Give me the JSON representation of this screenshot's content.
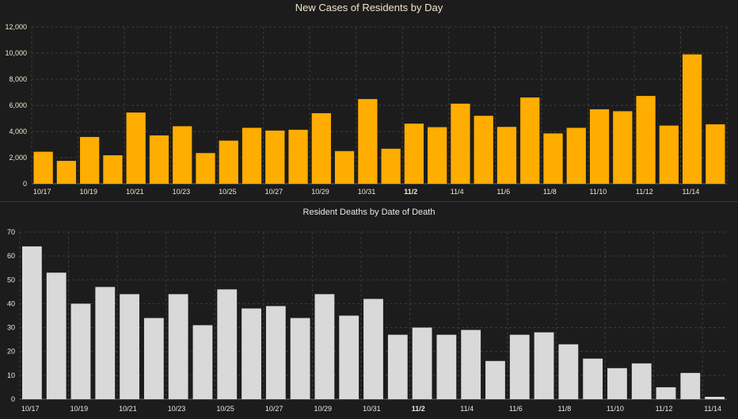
{
  "chart_data": [
    {
      "type": "bar",
      "title": "New Cases of Residents by Day",
      "xlabel": "",
      "ylabel": "",
      "ylim": [
        0,
        12000
      ],
      "yticks": [
        0,
        2000,
        4000,
        6000,
        8000,
        10000,
        12000
      ],
      "ytick_labels": [
        "0",
        "2,000",
        "4,000",
        "6,000",
        "8,000",
        "10,000",
        "12,000"
      ],
      "grid": true,
      "bar_color": "#ffad00",
      "categories": [
        "10/17",
        "10/18",
        "10/19",
        "10/20",
        "10/21",
        "10/22",
        "10/23",
        "10/24",
        "10/25",
        "10/26",
        "10/27",
        "10/28",
        "10/29",
        "10/30",
        "10/31",
        "11/1",
        "11/2",
        "11/3",
        "11/4",
        "11/5",
        "11/6",
        "11/7",
        "11/8",
        "11/9",
        "11/10",
        "11/11",
        "11/12",
        "11/13",
        "11/14",
        "11/15"
      ],
      "x_tick_labels": [
        "10/17",
        "10/19",
        "10/21",
        "10/23",
        "10/25",
        "10/27",
        "10/29",
        "10/31",
        "11/2",
        "11/4",
        "11/6",
        "11/8",
        "11/10",
        "11/12",
        "11/14"
      ],
      "bold_tick": "11/2",
      "values": [
        2450,
        1750,
        3580,
        2180,
        5450,
        3700,
        4400,
        2350,
        3300,
        4280,
        4070,
        4130,
        5400,
        2500,
        6480,
        2680,
        4600,
        4330,
        6130,
        5200,
        4350,
        6600,
        3850,
        4280,
        5700,
        5550,
        6720,
        4450,
        9900,
        4550
      ]
    },
    {
      "type": "bar",
      "title": "Resident Deaths by Date of Death",
      "xlabel": "",
      "ylabel": "",
      "ylim": [
        0,
        70
      ],
      "yticks": [
        0,
        10,
        20,
        30,
        40,
        50,
        60,
        70
      ],
      "ytick_labels": [
        "0",
        "10",
        "20",
        "30",
        "40",
        "50",
        "60",
        "70"
      ],
      "grid": true,
      "bar_color": "#d9d9d9",
      "categories": [
        "10/17",
        "10/18",
        "10/19",
        "10/20",
        "10/21",
        "10/22",
        "10/23",
        "10/24",
        "10/25",
        "10/26",
        "10/27",
        "10/28",
        "10/29",
        "10/30",
        "10/31",
        "11/1",
        "11/2",
        "11/3",
        "11/4",
        "11/5",
        "11/6",
        "11/7",
        "11/8",
        "11/9",
        "11/10",
        "11/11",
        "11/12",
        "11/13",
        "11/14"
      ],
      "x_tick_labels": [
        "10/17",
        "10/19",
        "10/21",
        "10/23",
        "10/25",
        "10/27",
        "10/29",
        "10/31",
        "11/2",
        "11/4",
        "11/6",
        "11/8",
        "11/10",
        "11/12",
        "11/14"
      ],
      "bold_tick": "11/2",
      "values": [
        64,
        53,
        40,
        47,
        44,
        34,
        44,
        31,
        46,
        38,
        39,
        34,
        44,
        35,
        42,
        27,
        30,
        27,
        29,
        16,
        27,
        28,
        23,
        17,
        13,
        15,
        5,
        11,
        1
      ]
    }
  ]
}
